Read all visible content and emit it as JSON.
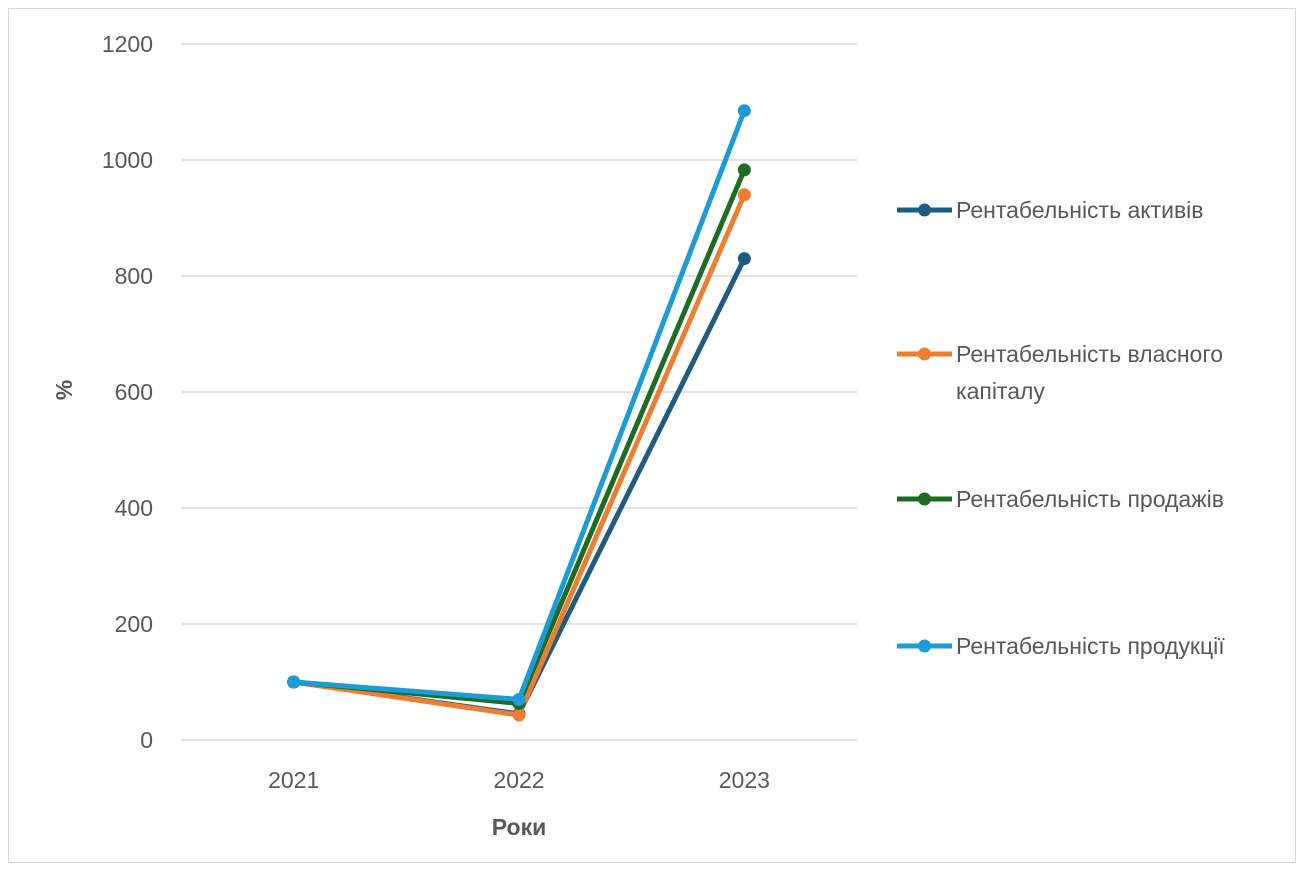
{
  "chart_data": {
    "type": "line",
    "categories": [
      "2021",
      "2022",
      "2023"
    ],
    "series": [
      {
        "name": "Рентабельність активів",
        "values": [
          100,
          45,
          830
        ],
        "color": "#1f5c82"
      },
      {
        "name": "Рентабельність власного капіталу",
        "name_lines": [
          "Рентабельність власного",
          "капіталу"
        ],
        "values": [
          100,
          43,
          940
        ],
        "color": "#ed7d31"
      },
      {
        "name": "Рентабельність продажів",
        "values": [
          100,
          63,
          983
        ],
        "color": "#1e6b23"
      },
      {
        "name": "Рентабельність продукції",
        "values": [
          100,
          70,
          1085
        ],
        "color": "#1c9bd6"
      }
    ],
    "xlabel": "Роки",
    "ylabel": "%",
    "ylim": [
      0,
      1200
    ],
    "yticks": [
      "0",
      "200",
      "400",
      "600",
      "800",
      "1000",
      "1200"
    ],
    "grid": true,
    "legend": "right"
  }
}
